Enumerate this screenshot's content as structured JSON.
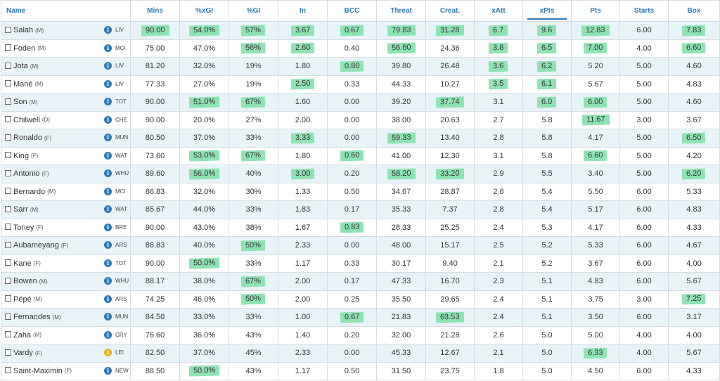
{
  "columns": [
    "Name",
    "Mins",
    "%xGI",
    "%GI",
    "In",
    "BCC",
    "Threat",
    "Creat.",
    "xAtt",
    "xPts",
    "Pts",
    "Starts",
    "Box"
  ],
  "sorted_column": "xPts",
  "highlight_color": "#8fe3b3",
  "rows": [
    {
      "name": "Salah",
      "pos": "(M)",
      "team": "LIV",
      "icon": "info",
      "cells": [
        "90.00",
        "54.0%",
        "57%",
        "3.67",
        "0.67",
        "79.83",
        "31.28",
        "6.7",
        "9.6",
        "12.83",
        "6.00",
        "7.83"
      ],
      "hl": [
        1,
        1,
        1,
        1,
        1,
        1,
        1,
        1,
        1,
        1,
        0,
        1
      ]
    },
    {
      "name": "Foden",
      "pos": "(M)",
      "team": "MCI",
      "icon": "info",
      "cells": [
        "75.00",
        "47.0%",
        "56%",
        "2.60",
        "0.40",
        "56.60",
        "24.36",
        "3.8",
        "6.5",
        "7.00",
        "4.00",
        "6.60"
      ],
      "hl": [
        0,
        0,
        1,
        1,
        0,
        1,
        0,
        1,
        1,
        1,
        0,
        1
      ]
    },
    {
      "name": "Jota",
      "pos": "(M)",
      "team": "LIV",
      "icon": "info",
      "cells": [
        "81.20",
        "32.0%",
        "19%",
        "1.80",
        "0.80",
        "39.80",
        "26.48",
        "3.6",
        "6.2",
        "5.20",
        "5.00",
        "4.60"
      ],
      "hl": [
        0,
        0,
        0,
        0,
        1,
        0,
        0,
        1,
        1,
        0,
        0,
        0
      ]
    },
    {
      "name": "Mané",
      "pos": "(M)",
      "team": "LIV",
      "icon": "info",
      "cells": [
        "77.33",
        "27.0%",
        "19%",
        "2.50",
        "0.33",
        "44.33",
        "10.27",
        "3.5",
        "6.1",
        "5.67",
        "5.00",
        "4.83"
      ],
      "hl": [
        0,
        0,
        0,
        1,
        0,
        0,
        0,
        1,
        1,
        0,
        0,
        0
      ]
    },
    {
      "name": "Son",
      "pos": "(M)",
      "team": "TOT",
      "icon": "info",
      "cells": [
        "90.00",
        "51.0%",
        "67%",
        "1.60",
        "0.00",
        "39.20",
        "37.74",
        "3.1",
        "6.0",
        "6.00",
        "5.00",
        "4.60"
      ],
      "hl": [
        0,
        1,
        1,
        0,
        0,
        0,
        1,
        0,
        1,
        1,
        0,
        0
      ]
    },
    {
      "name": "Chilwell",
      "pos": "(D)",
      "team": "CHE",
      "icon": "info",
      "cells": [
        "90.00",
        "20.0%",
        "27%",
        "2.00",
        "0.00",
        "38.00",
        "20.63",
        "2.7",
        "5.8",
        "11.67",
        "3.00",
        "3.67"
      ],
      "hl": [
        0,
        0,
        0,
        0,
        0,
        0,
        0,
        0,
        0,
        1,
        0,
        0
      ]
    },
    {
      "name": "Ronaldo",
      "pos": "(F)",
      "team": "MUN",
      "icon": "info",
      "cells": [
        "80.50",
        "37.0%",
        "33%",
        "3.33",
        "0.00",
        "59.33",
        "13.40",
        "2.8",
        "5.8",
        "4.17",
        "5.00",
        "6.50"
      ],
      "hl": [
        0,
        0,
        0,
        1,
        0,
        1,
        0,
        0,
        0,
        0,
        0,
        1
      ]
    },
    {
      "name": "King",
      "pos": "(F)",
      "team": "WAT",
      "icon": "info",
      "cells": [
        "73.60",
        "53.0%",
        "67%",
        "1.80",
        "0.60",
        "41.00",
        "12.30",
        "3.1",
        "5.8",
        "6.60",
        "5.00",
        "4.20"
      ],
      "hl": [
        0,
        1,
        1,
        0,
        1,
        0,
        0,
        0,
        0,
        1,
        0,
        0
      ]
    },
    {
      "name": "Antonio",
      "pos": "(F)",
      "team": "WHU",
      "icon": "info",
      "cells": [
        "89.60",
        "56.0%",
        "40%",
        "3.00",
        "0.20",
        "58.20",
        "33.20",
        "2.9",
        "5.5",
        "3.40",
        "5.00",
        "6.20"
      ],
      "hl": [
        0,
        1,
        0,
        1,
        0,
        1,
        1,
        0,
        0,
        0,
        0,
        1
      ]
    },
    {
      "name": "Bernardo",
      "pos": "(M)",
      "team": "MCI",
      "icon": "info",
      "cells": [
        "86.83",
        "32.0%",
        "30%",
        "1.33",
        "0.50",
        "34.67",
        "28.87",
        "2.6",
        "5.4",
        "5.50",
        "6.00",
        "5.33"
      ],
      "hl": [
        0,
        0,
        0,
        0,
        0,
        0,
        0,
        0,
        0,
        0,
        0,
        0
      ]
    },
    {
      "name": "Sarr",
      "pos": "(M)",
      "team": "WAT",
      "icon": "info",
      "cells": [
        "85.67",
        "44.0%",
        "33%",
        "1.83",
        "0.17",
        "35.33",
        "7.37",
        "2.8",
        "5.4",
        "5.17",
        "6.00",
        "4.83"
      ],
      "hl": [
        0,
        0,
        0,
        0,
        0,
        0,
        0,
        0,
        0,
        0,
        0,
        0
      ]
    },
    {
      "name": "Toney",
      "pos": "(F)",
      "team": "BRE",
      "icon": "info",
      "cells": [
        "90.00",
        "43.0%",
        "38%",
        "1.67",
        "0.83",
        "28.33",
        "25.25",
        "2.4",
        "5.3",
        "4.17",
        "6.00",
        "4.33"
      ],
      "hl": [
        0,
        0,
        0,
        0,
        1,
        0,
        0,
        0,
        0,
        0,
        0,
        0
      ]
    },
    {
      "name": "Aubameyang",
      "pos": "(F)",
      "team": "ARS",
      "icon": "info",
      "cells": [
        "86.83",
        "40.0%",
        "50%",
        "2.33",
        "0.00",
        "48.00",
        "15.17",
        "2.5",
        "5.2",
        "5.33",
        "6.00",
        "4.67"
      ],
      "hl": [
        0,
        0,
        1,
        0,
        0,
        0,
        0,
        0,
        0,
        0,
        0,
        0
      ]
    },
    {
      "name": "Kane",
      "pos": "(F)",
      "team": "TOT",
      "icon": "info",
      "cells": [
        "90.00",
        "50.0%",
        "33%",
        "1.17",
        "0.33",
        "30.17",
        "9.40",
        "2.1",
        "5.2",
        "3.67",
        "6.00",
        "4.00"
      ],
      "hl": [
        0,
        1,
        0,
        0,
        0,
        0,
        0,
        0,
        0,
        0,
        0,
        0
      ]
    },
    {
      "name": "Bowen",
      "pos": "(M)",
      "team": "WHU",
      "icon": "info",
      "cells": [
        "88.17",
        "38.0%",
        "67%",
        "2.00",
        "0.17",
        "47.33",
        "16.70",
        "2.3",
        "5.1",
        "4.83",
        "6.00",
        "5.67"
      ],
      "hl": [
        0,
        0,
        1,
        0,
        0,
        0,
        0,
        0,
        0,
        0,
        0,
        0
      ]
    },
    {
      "name": "Pépé",
      "pos": "(M)",
      "team": "ARS",
      "icon": "info",
      "cells": [
        "74.25",
        "46.0%",
        "50%",
        "2.00",
        "0.25",
        "35.50",
        "29.65",
        "2.4",
        "5.1",
        "3.75",
        "3.00",
        "7.25"
      ],
      "hl": [
        0,
        0,
        1,
        0,
        0,
        0,
        0,
        0,
        0,
        0,
        0,
        1
      ]
    },
    {
      "name": "Fernandes",
      "pos": "(M)",
      "team": "MUN",
      "icon": "info",
      "cells": [
        "84.50",
        "33.0%",
        "33%",
        "1.00",
        "0.67",
        "21.83",
        "63.53",
        "2.4",
        "5.1",
        "3.50",
        "6.00",
        "3.17"
      ],
      "hl": [
        0,
        0,
        0,
        0,
        1,
        0,
        1,
        0,
        0,
        0,
        0,
        0
      ]
    },
    {
      "name": "Zaha",
      "pos": "(M)",
      "team": "CRY",
      "icon": "info",
      "cells": [
        "76.60",
        "36.0%",
        "43%",
        "1.40",
        "0.20",
        "32.00",
        "21.28",
        "2.6",
        "5.0",
        "5.00",
        "4.00",
        "4.00"
      ],
      "hl": [
        0,
        0,
        0,
        0,
        0,
        0,
        0,
        0,
        0,
        0,
        0,
        0
      ]
    },
    {
      "name": "Vardy",
      "pos": "(F)",
      "team": "LEI",
      "icon": "warn",
      "cells": [
        "82.50",
        "37.0%",
        "45%",
        "2.33",
        "0.00",
        "45.33",
        "12.67",
        "2.1",
        "5.0",
        "6.33",
        "4.00",
        "5.67"
      ],
      "hl": [
        0,
        0,
        0,
        0,
        0,
        0,
        0,
        0,
        0,
        1,
        0,
        0
      ]
    },
    {
      "name": "Saint-Maximin",
      "pos": "(F)",
      "team": "NEW",
      "icon": "info",
      "cells": [
        "88.50",
        "50.0%",
        "43%",
        "1.17",
        "0.50",
        "31.50",
        "23.75",
        "1.8",
        "5.0",
        "4.50",
        "6.00",
        "4.33"
      ],
      "hl": [
        0,
        1,
        0,
        0,
        0,
        0,
        0,
        0,
        0,
        0,
        0,
        0
      ]
    }
  ]
}
